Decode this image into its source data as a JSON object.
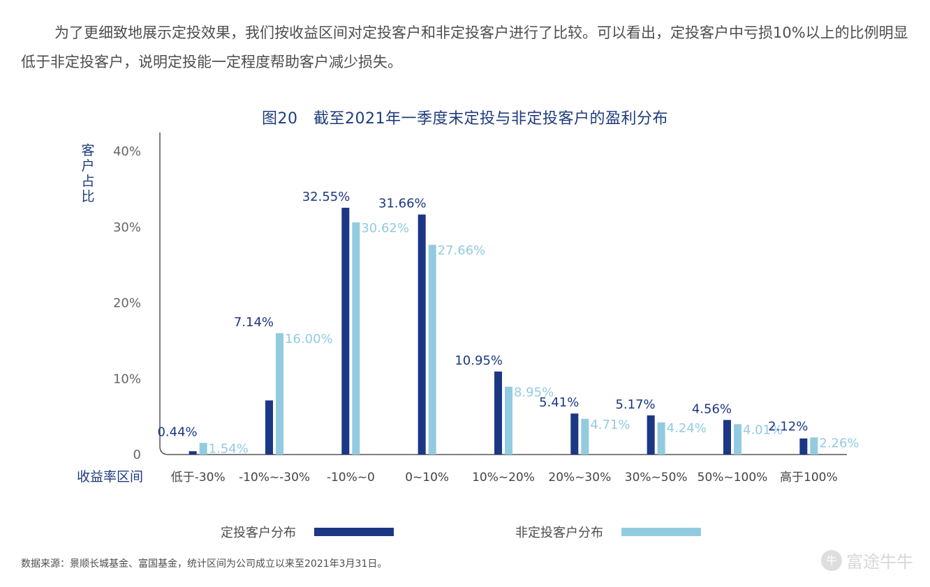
{
  "intro_text": "为了更细致地展示定投效果，我们按收益区间对定投客户和非定投客户进行了比较。可以看出，定投客户中亏损10%以上的比例明显低于非定投客户，说明定投能一定程度帮助客户减少损失。",
  "source_text": "数据来源：景顺长城基金、富国基金，统计区间为公司成立以来至2021年3月31日。",
  "watermark": {
    "icon": "futu-logo-icon",
    "text": "富途牛牛"
  },
  "colors": {
    "dark": "#1c3783",
    "light": "#92cbe0",
    "axis": "#555555",
    "title": "#1f3b7c"
  },
  "chart_data": {
    "type": "bar",
    "title": "图20　截至2021年一季度末定投与非定投客户的盈利分布",
    "xlabel": "收益率区间",
    "ylabel": "客户占比",
    "ylim": [
      0,
      40
    ],
    "yticks": [
      "0",
      "10%",
      "20%",
      "30%",
      "40%"
    ],
    "categories": [
      "低于-30%",
      "-10%~-30%",
      "-10%~0",
      "0~10%",
      "10%~20%",
      "20%~30%",
      "30%~50%",
      "50%~100%",
      "高于100%"
    ],
    "series": [
      {
        "name": "定投客户分布",
        "values": [
          0.44,
          7.14,
          32.55,
          31.66,
          10.95,
          5.41,
          5.17,
          4.56,
          2.12
        ],
        "labels": [
          "0.44%",
          "7.14%",
          "32.55%",
          "31.66%",
          "10.95%",
          "5.41%",
          "5.17%",
          "4.56%",
          "2.12%"
        ]
      },
      {
        "name": "非定投客户分布",
        "values": [
          1.54,
          16.0,
          30.62,
          27.66,
          8.95,
          4.71,
          4.24,
          4.01,
          2.26
        ],
        "labels": [
          "1.54%",
          "16.00%",
          "30.62%",
          "27.66%",
          "8.95%",
          "4.71%",
          "4.24%",
          "4.01%",
          "2.26%"
        ]
      }
    ],
    "grid": false,
    "legend_position": "bottom"
  }
}
